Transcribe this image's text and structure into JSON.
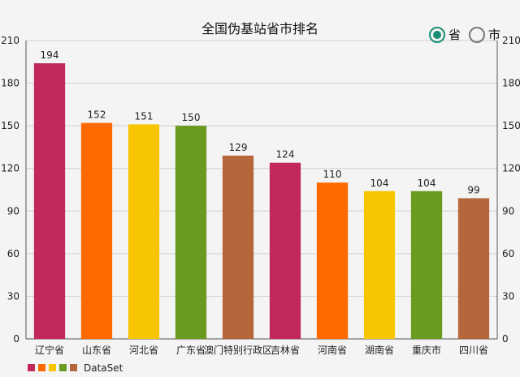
{
  "chart_data": {
    "type": "bar",
    "title": "全国伪基站省市排名",
    "categories": [
      "辽宁省",
      "山东省",
      "河北省",
      "广东省",
      "澳门特别行政区",
      "吉林省",
      "河南省",
      "湖南省",
      "重庆市",
      "四川省"
    ],
    "values": [
      194,
      152,
      151,
      150,
      129,
      124,
      110,
      104,
      104,
      99
    ],
    "colors": [
      "#c2295a",
      "#ff6a00",
      "#f7c600",
      "#6a9a1f",
      "#b5663a",
      "#c2295a",
      "#ff6a00",
      "#f7c600",
      "#6a9a1f",
      "#b5663a"
    ],
    "legend_colors": [
      "#c2295a",
      "#ff6a00",
      "#f7c600",
      "#6a9a1f",
      "#b5663a"
    ],
    "yticks": [
      0,
      30,
      60,
      90,
      120,
      150,
      180,
      210
    ],
    "ylim": [
      0,
      210
    ],
    "legend": "DataSet",
    "grid": true
  },
  "toggle": {
    "options": [
      {
        "label": "省",
        "selected": true
      },
      {
        "label": "市",
        "selected": false
      }
    ],
    "accent": "#1a8f74"
  }
}
